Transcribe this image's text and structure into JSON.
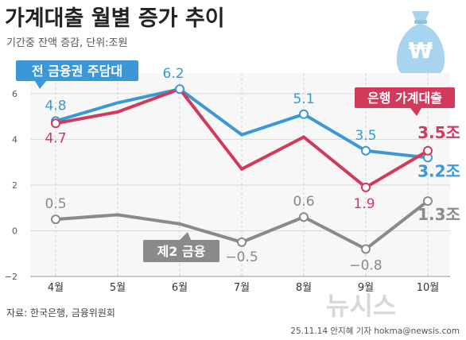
{
  "header": {
    "title": "가계대출 월별 증가 추이",
    "subtitle": "기간중 잔액 증감, 단위:조원"
  },
  "footer": {
    "source": "자료: 한국은행, 금융위원회",
    "credit": "25.11.14 안지혜 기자 hokma@newsis.com",
    "watermark": "뉴시스"
  },
  "icon": {
    "name": "money-bag-won-icon",
    "symbol": "₩"
  },
  "colors": {
    "blue": "#3a98d8",
    "red": "#d2395a",
    "gray": "#8a8a8a",
    "bag": "#a8d4ef",
    "title": "#222222"
  },
  "chart_data": {
    "type": "line",
    "categories": [
      "4월",
      "5월",
      "6월",
      "7월",
      "8월",
      "9월",
      "10월"
    ],
    "ylim": [
      -2,
      6.9
    ],
    "yticks": [
      -2,
      0,
      2,
      4,
      6
    ],
    "grid": true,
    "series": [
      {
        "name": "전 금융권 주담대",
        "color": "#3a98d8",
        "values": [
          4.8,
          5.6,
          6.2,
          4.2,
          5.1,
          3.5,
          3.2
        ],
        "labels": [
          "4.8",
          "",
          "6.2",
          "",
          "5.1",
          "3.5",
          "3.2조"
        ]
      },
      {
        "name": "은행 가계대출",
        "color": "#d2395a",
        "values": [
          4.7,
          5.2,
          6.2,
          2.7,
          4.1,
          1.9,
          3.5
        ],
        "labels": [
          "4.7",
          "",
          "",
          "",
          "",
          "1.9",
          "3.5조"
        ]
      },
      {
        "name": "제2 금융",
        "color": "#8a8a8a",
        "values": [
          0.5,
          0.7,
          0.3,
          -0.5,
          0.6,
          -0.8,
          1.3
        ],
        "labels": [
          "0.5",
          "",
          "",
          "−0.5",
          "0.6",
          "−0.8",
          "1.3조"
        ]
      }
    ]
  }
}
